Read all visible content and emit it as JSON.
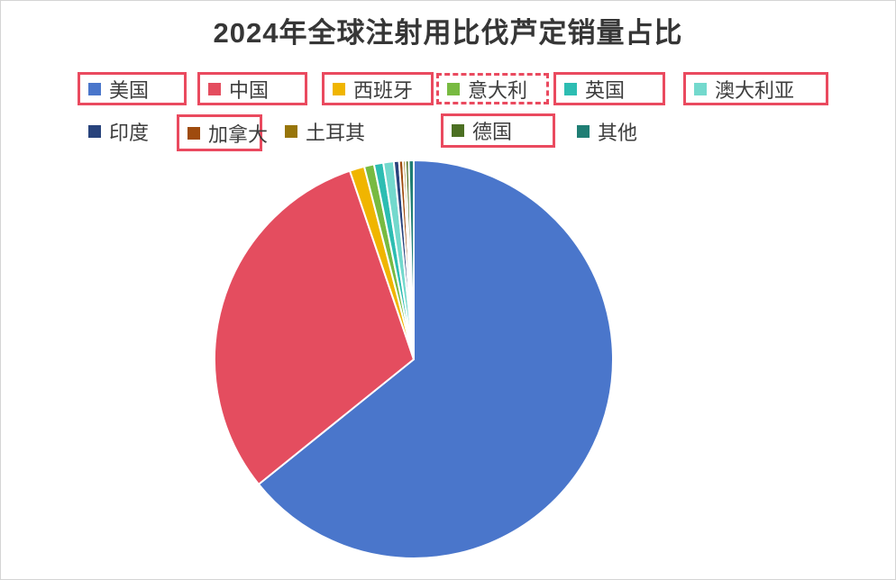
{
  "title": "2024年全球注射用比伐芦定销量占比",
  "annotation": {
    "box_color": "#EA4A5F"
  },
  "chart_data": {
    "type": "pie",
    "title": "2024年全球注射用比伐芦定销量占比",
    "legend_position": "top",
    "start_angle_deg": 0,
    "direction": "clockwise",
    "unit": "percent",
    "series": [
      {
        "name": "美国",
        "value": 64.2,
        "color": "#4A76CB",
        "annotation_box": "solid"
      },
      {
        "name": "中国",
        "value": 30.6,
        "color": "#E44D5F",
        "annotation_box": "solid"
      },
      {
        "name": "西班牙",
        "value": 1.2,
        "color": "#F0B500",
        "annotation_box": "solid"
      },
      {
        "name": "意大利",
        "value": 0.8,
        "color": "#78BA41",
        "annotation_box": "dashed"
      },
      {
        "name": "英国",
        "value": 0.75,
        "color": "#2DBDB2",
        "annotation_box": "solid"
      },
      {
        "name": "澳大利亚",
        "value": 0.85,
        "color": "#73D9CD",
        "annotation_box": "solid"
      },
      {
        "name": "印度",
        "value": 0.42,
        "color": "#28437C",
        "annotation_box": "none"
      },
      {
        "name": "加拿大",
        "value": 0.32,
        "color": "#9F4B0E",
        "annotation_box": "solid"
      },
      {
        "name": "土耳其",
        "value": 0.2,
        "color": "#97750A",
        "annotation_box": "none"
      },
      {
        "name": "德国",
        "value": 0.26,
        "color": "#4C7023",
        "annotation_box": "solid"
      },
      {
        "name": "其他",
        "value": 0.4,
        "color": "#1F7E74",
        "annotation_box": "none"
      }
    ]
  }
}
